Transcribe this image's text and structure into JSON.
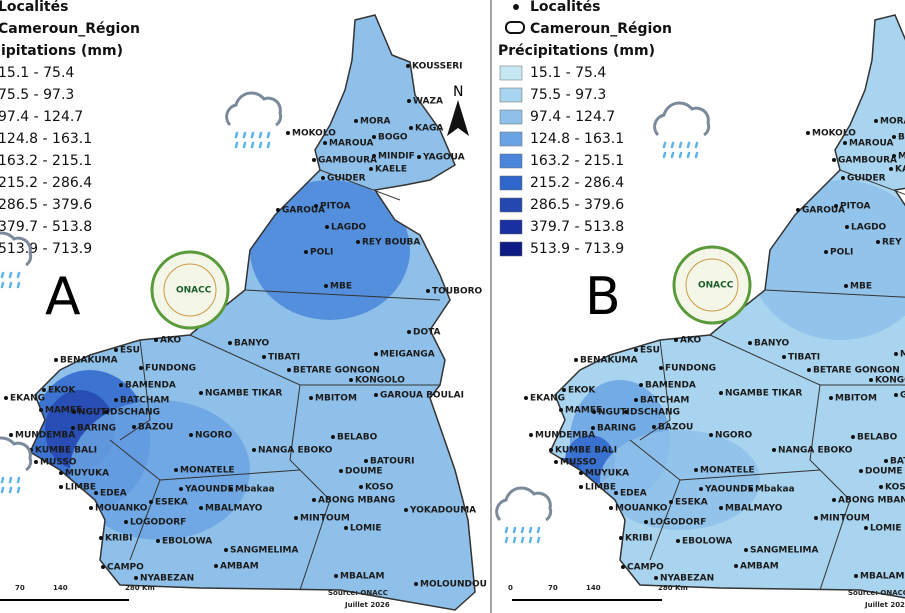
{
  "legend": {
    "localities": "Localités",
    "regions": "Cameroun_Région",
    "title": "Précipitations (mm)",
    "classes": [
      {
        "label": "15.1 - 75.4",
        "color": "#c6e8f5"
      },
      {
        "label": "75.5 - 97.3",
        "color": "#a8d4ef"
      },
      {
        "label": "97.4 - 124.7",
        "color": "#8ec0ea"
      },
      {
        "label": "124.8 - 163.1",
        "color": "#6aa3e3"
      },
      {
        "label": "163.2 - 215.1",
        "color": "#4a86db"
      },
      {
        "label": "215.2 - 286.4",
        "color": "#2f66cc"
      },
      {
        "label": "286.5 - 379.6",
        "color": "#2448b0"
      },
      {
        "label": "379.7 - 513.8",
        "color": "#1a2fa0"
      },
      {
        "label": "513.9 - 713.9",
        "color": "#0e1b85"
      }
    ]
  },
  "panels": [
    {
      "label": "A"
    },
    {
      "label": "B"
    }
  ],
  "north": "N",
  "logo": "ONACC",
  "scale": [
    "0",
    "70",
    "140",
    "280 Km"
  ],
  "source": "Source: ONACC",
  "date": "Juillet 2026",
  "cities": [
    "KOUSSERI",
    "WAZA",
    "MORA",
    "KAGA",
    "MOKOLO",
    "MAROUA",
    "BOGO",
    "MINDIF",
    "YAGOUA",
    "GAMBOURA",
    "KAELE",
    "GUIDER",
    "GAROUA",
    "PITOA",
    "LAGDO",
    "POLI",
    "REY BOUBA",
    "TOUBORO",
    "MBE",
    "BANYO",
    "TIBATI",
    "BETARE GONGON",
    "MEIGANGA",
    "DOTA",
    "KONGOLO",
    "GAROUA BOULAI",
    "NGAMBE TIKAR",
    "MBITOM",
    "AKO",
    "BENAKUMA",
    "ESU",
    "FUNDONG",
    "BAMENDA",
    "EKOK",
    "EKANG",
    "BATCHAM",
    "MAMFE",
    "NGUTI",
    "DSCHANG",
    "BARING",
    "BAZOU",
    "NGORO",
    "NANGA EBOKO",
    "BELABO",
    "BATOURI",
    "MUNDEMBA",
    "KUMBE BALI",
    "MUSSO",
    "MUYUKA",
    "LIMBE",
    "EDEA",
    "MOUANKO",
    "MONATELE",
    "YAOUNDE",
    "Mbakaa",
    "DOUME",
    "KOSO",
    "ABONG MBANG",
    "YOKADOUMA",
    "ESEKA",
    "MBALMAYO",
    "LOGODORF",
    "MINTOUM",
    "LOMIE",
    "EBOLOWA",
    "SANGMELIMA",
    "KRIBI",
    "CAMPO",
    "NYABEZAN",
    "AMBAM",
    "MBALAM",
    "MOLOUNDOU"
  ]
}
